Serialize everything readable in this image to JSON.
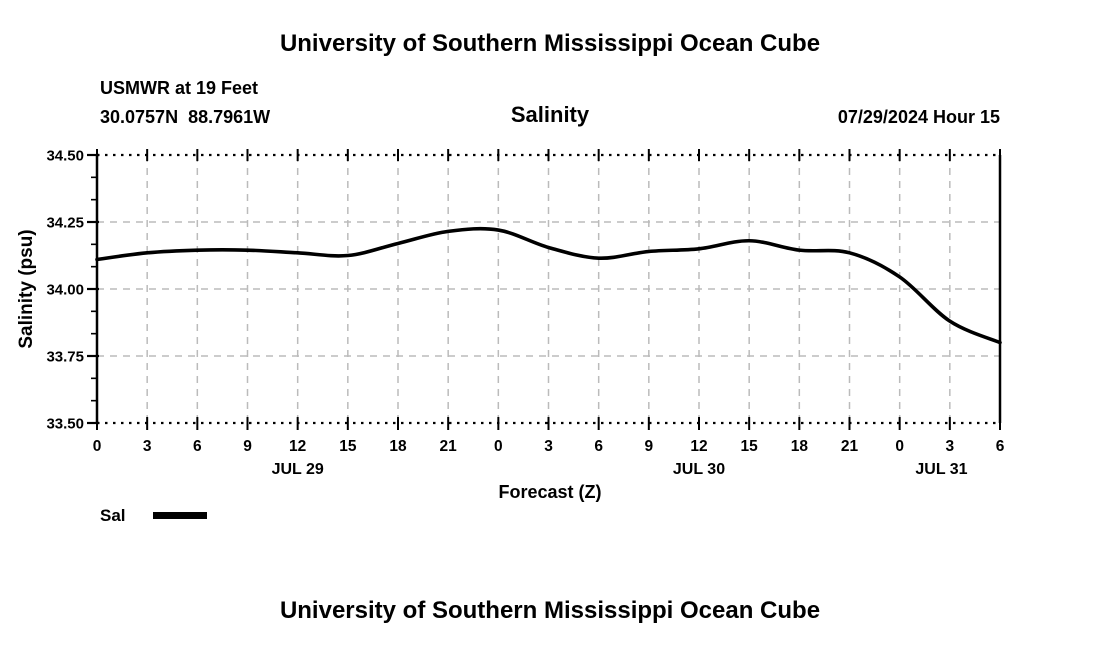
{
  "header": {
    "title": "University of Southern Mississippi Ocean Cube",
    "station": "USMWR at 19 Feet",
    "coordinates": "30.0757N  88.7961W",
    "datetime": "07/29/2024 Hour 15"
  },
  "footer": {
    "title": "University of Southern Mississippi Ocean Cube"
  },
  "legend": {
    "label": "Sal",
    "line_color": "#000000"
  },
  "chart_data": {
    "type": "line",
    "title": "Salinity",
    "xlabel": "Forecast (Z)",
    "ylabel": "Salinity (psu)",
    "x_hours": [
      0,
      3,
      6,
      9,
      12,
      15,
      18,
      21,
      24,
      27,
      30,
      33,
      36,
      39,
      42,
      45,
      48,
      51,
      54
    ],
    "x_tick_labels": [
      "0",
      "3",
      "6",
      "9",
      "12",
      "15",
      "18",
      "21",
      "0",
      "3",
      "6",
      "9",
      "12",
      "15",
      "18",
      "21",
      "0",
      "3",
      "6"
    ],
    "date_labels": [
      {
        "label": "JUL 29",
        "hour": 12
      },
      {
        "label": "JUL 30",
        "hour": 36
      },
      {
        "label": "JUL 31",
        "hour": 50.5
      }
    ],
    "series": [
      {
        "name": "Sal",
        "values": [
          34.11,
          34.135,
          34.145,
          34.145,
          34.135,
          34.125,
          34.17,
          34.215,
          34.22,
          34.155,
          34.115,
          34.14,
          34.15,
          34.18,
          34.145,
          34.135,
          34.045,
          33.88,
          33.8
        ]
      }
    ],
    "xlim": [
      0,
      54
    ],
    "ylim": [
      33.5,
      34.5
    ],
    "y_ticks": [
      33.5,
      33.75,
      34.0,
      34.25,
      34.5
    ],
    "y_tick_labels": [
      "33.50",
      "33.75",
      "34.00",
      "34.25",
      "34.50"
    ],
    "grid": true,
    "legend_position": "bottom-left",
    "colors": {
      "line": "#000000",
      "grid": "#bbbbbb",
      "frame": "#000000",
      "text": "#000000"
    }
  }
}
